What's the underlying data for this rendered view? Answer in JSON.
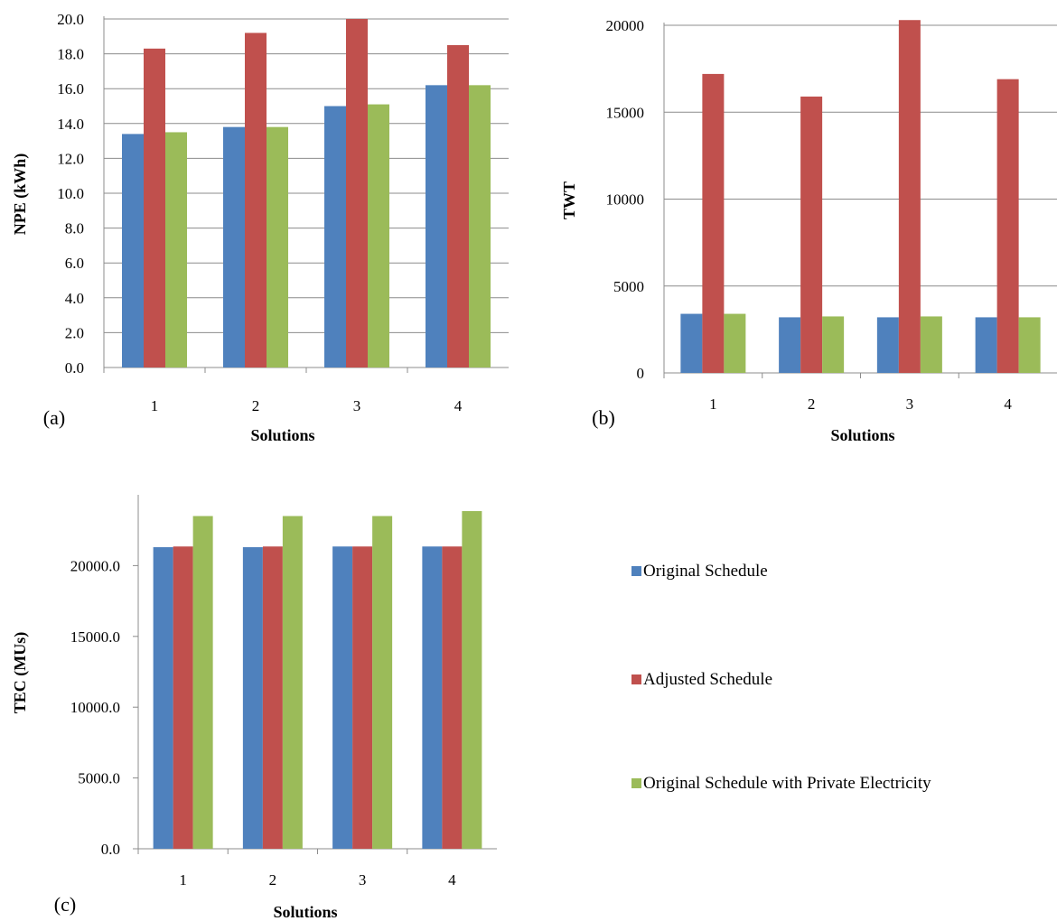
{
  "figure": {
    "legend": [
      {
        "label": "Original Schedule",
        "color": "#4f81bd"
      },
      {
        "label": "Adjusted Schedule",
        "color": "#c0504d"
      },
      {
        "label": "Original Schedule with Private Electricity",
        "color": "#9bbb59"
      }
    ]
  },
  "chart_data": [
    {
      "panel": "(a)",
      "type": "bar",
      "ylabel": "NPE (kWh)",
      "xlabel": "Solutions",
      "categories": [
        "1",
        "2",
        "3",
        "4"
      ],
      "ylim": [
        0,
        20
      ],
      "yticks": [
        "0.0",
        "2.0",
        "4.0",
        "6.0",
        "8.0",
        "10.0",
        "12.0",
        "14.0",
        "16.0",
        "18.0",
        "20.0"
      ],
      "grid": true,
      "series": [
        {
          "name": "Original Schedule",
          "color": "#4f81bd",
          "values": [
            13.4,
            13.8,
            15.0,
            16.2
          ]
        },
        {
          "name": "Adjusted Schedule",
          "color": "#c0504d",
          "values": [
            18.3,
            19.2,
            20.0,
            18.5
          ]
        },
        {
          "name": "Original Schedule with Private Electricity",
          "color": "#9bbb59",
          "values": [
            13.5,
            13.8,
            15.1,
            16.2
          ]
        }
      ]
    },
    {
      "panel": "(b)",
      "type": "bar",
      "ylabel": "TWT",
      "xlabel": "Solutions",
      "categories": [
        "1",
        "2",
        "3",
        "4"
      ],
      "ylim": [
        0,
        20000
      ],
      "yticks": [
        "0",
        "5000",
        "10000",
        "15000",
        "20000"
      ],
      "grid": true,
      "series": [
        {
          "name": "Original Schedule",
          "color": "#4f81bd",
          "values": [
            3400,
            3200,
            3200,
            3200
          ]
        },
        {
          "name": "Adjusted Schedule",
          "color": "#c0504d",
          "values": [
            17200,
            15900,
            20300,
            16900
          ]
        },
        {
          "name": "Original Schedule with Private Electricity",
          "color": "#9bbb59",
          "values": [
            3400,
            3250,
            3250,
            3200
          ]
        }
      ]
    },
    {
      "panel": "(c)",
      "type": "bar",
      "ylabel": "TEC  (MUs)",
      "xlabel": "Solutions",
      "categories": [
        "1",
        "2",
        "3",
        "4"
      ],
      "ylim": [
        0,
        25000
      ],
      "yticks": [
        "0.0",
        "5000.0",
        "10000.0",
        "15000.0",
        "20000.0"
      ],
      "grid": false,
      "series": [
        {
          "name": "Original Schedule",
          "color": "#4f81bd",
          "values": [
            21300,
            21300,
            21350,
            21350
          ]
        },
        {
          "name": "Adjusted Schedule",
          "color": "#c0504d",
          "values": [
            21350,
            21350,
            21350,
            21350
          ]
        },
        {
          "name": "Original Schedule with Private Electricity",
          "color": "#9bbb59",
          "values": [
            23500,
            23500,
            23500,
            23850
          ]
        }
      ]
    }
  ]
}
